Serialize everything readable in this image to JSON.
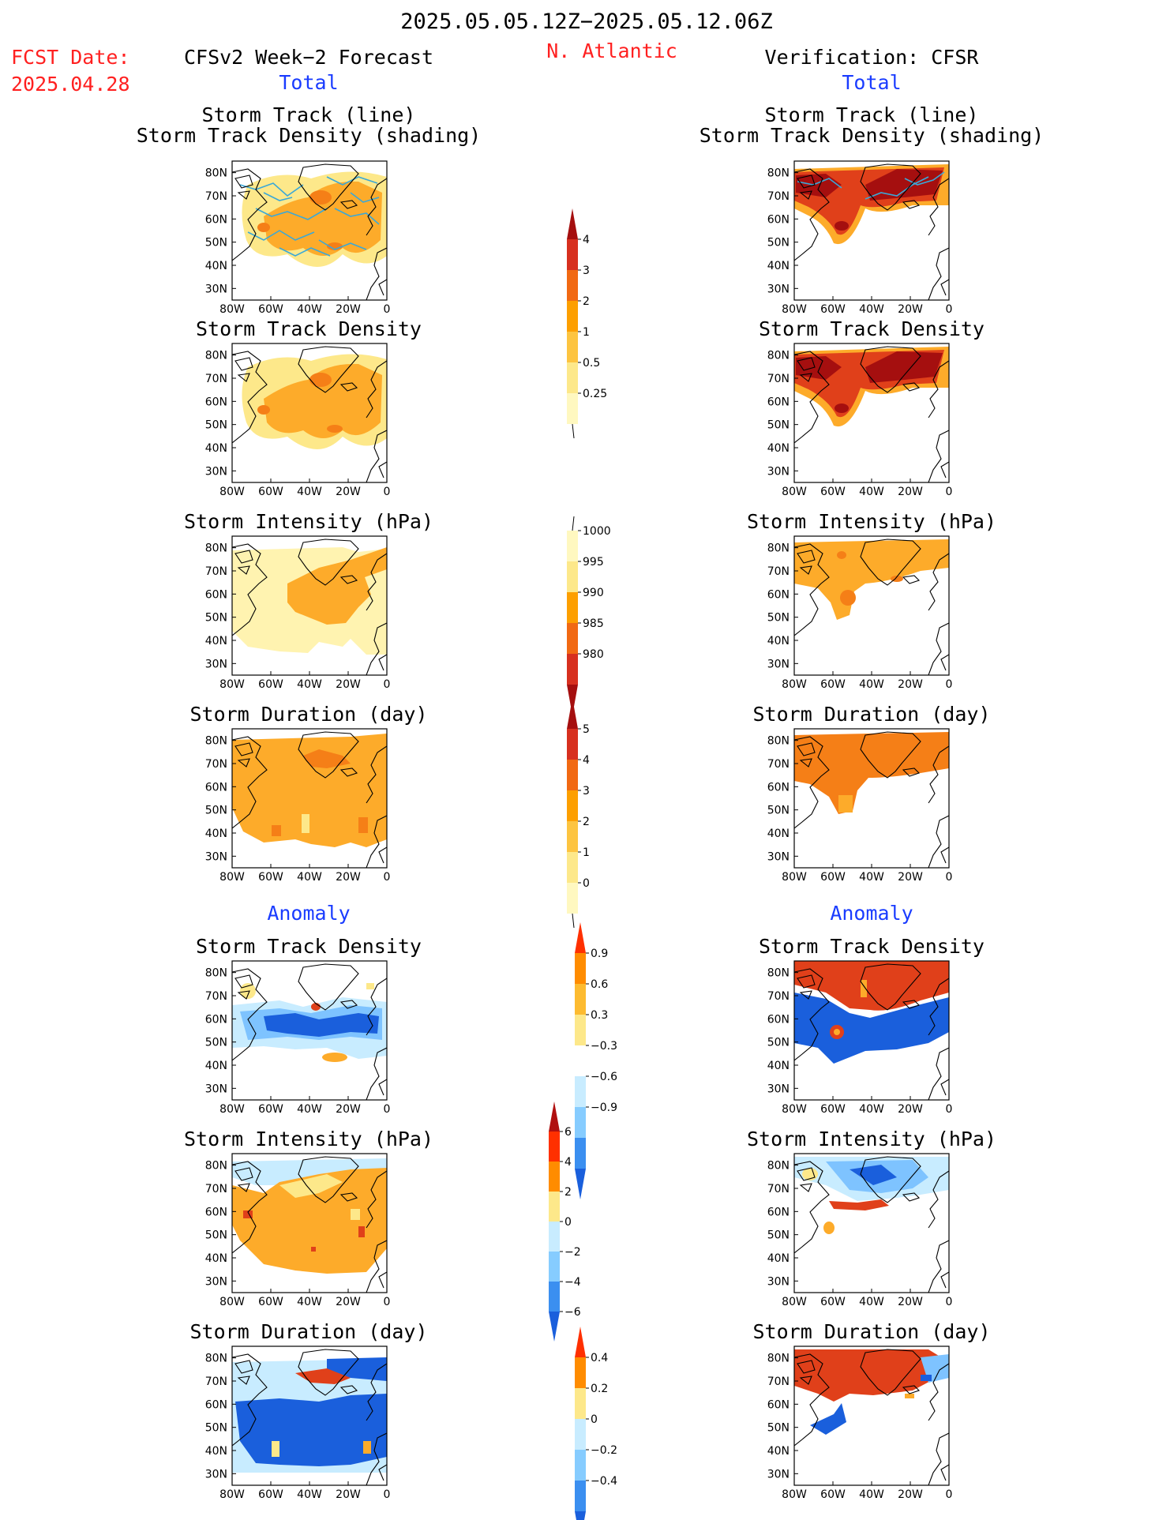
{
  "header": {
    "title": "2025.05.05.12Z−2025.05.12.06Z",
    "fcst_label": "FCST Date:",
    "fcst_date": "2025.04.28",
    "forecast_title": "CFSv2 Week−2 Forecast",
    "region": "N. Atlantic",
    "verification_title": "Verification: CFSR",
    "total_left": "Total",
    "total_right": "Total",
    "anomaly_left": "Anomaly",
    "anomaly_right": "Anomaly"
  },
  "panel_titles": {
    "track_line": "Storm Track (line)",
    "track_shading": "Storm Track Density (shading)",
    "density": "Storm Track Density",
    "intensity": "Storm Intensity (hPa)",
    "duration": "Storm Duration (day)"
  },
  "axes": {
    "lat_ticks": [
      "80N",
      "70N",
      "60N",
      "50N",
      "40N",
      "30N"
    ],
    "lon_ticks": [
      "80W",
      "60W",
      "40W",
      "20W",
      "0"
    ]
  },
  "colorbars": {
    "total_density": {
      "labels": [
        "4",
        "3",
        "2",
        "1",
        "0.5",
        "0.25"
      ],
      "colors": [
        "#a50f0f",
        "#d7301f",
        "#f16913",
        "#fd9f00",
        "#fdc440",
        "#fde88a",
        "#fff8c0"
      ]
    },
    "total_intensity": {
      "labels": [
        "1000",
        "995",
        "990",
        "985",
        "980"
      ],
      "colors": [
        "#fff8c0",
        "#fde88a",
        "#fd9f00",
        "#f16913",
        "#d7301f",
        "#a50f0f"
      ]
    },
    "total_duration": {
      "labels": [
        "5",
        "4",
        "3",
        "2",
        "1",
        "0"
      ],
      "colors": [
        "#a50f0f",
        "#d7301f",
        "#f16913",
        "#fd9f00",
        "#fdc440",
        "#fde88a",
        "#fff8c0"
      ]
    },
    "anom_density": {
      "labels": [
        "0.9",
        "0.6",
        "0.3",
        "−0.3",
        "−0.6",
        "−0.9"
      ],
      "colors": [
        "#ff3000",
        "#ff8c00",
        "#fdbb30",
        "#fde88a",
        "#ffffff",
        "#c8ecff",
        "#86ccff",
        "#3b8ff0",
        "#1a5fdc"
      ]
    },
    "anom_intensity": {
      "labels": [
        "6",
        "4",
        "2",
        "0",
        "−2",
        "−4",
        "−6"
      ],
      "colors": [
        "#b01010",
        "#ff3000",
        "#ff8c00",
        "#fde88a",
        "#c8ecff",
        "#86ccff",
        "#3b8ff0",
        "#1a5fdc"
      ]
    },
    "anom_duration": {
      "labels": [
        "0.4",
        "0.2",
        "0",
        "−0.2",
        "−0.4"
      ],
      "colors": [
        "#ff3000",
        "#ff8c00",
        "#fde88a",
        "#c8ecff",
        "#86ccff",
        "#3b8ff0",
        "#1a5fdc"
      ]
    }
  },
  "map_colors": {
    "lightyellow": "#fff3b0",
    "yellow": "#fde88a",
    "orange": "#fdab2a",
    "darkorange": "#f57f17",
    "red": "#e0401a",
    "darkred": "#a50f0f",
    "lightblue": "#c8ecff",
    "skyblue": "#7ec3ff",
    "blue": "#1a5fdc",
    "track": "#3aa8d8"
  }
}
